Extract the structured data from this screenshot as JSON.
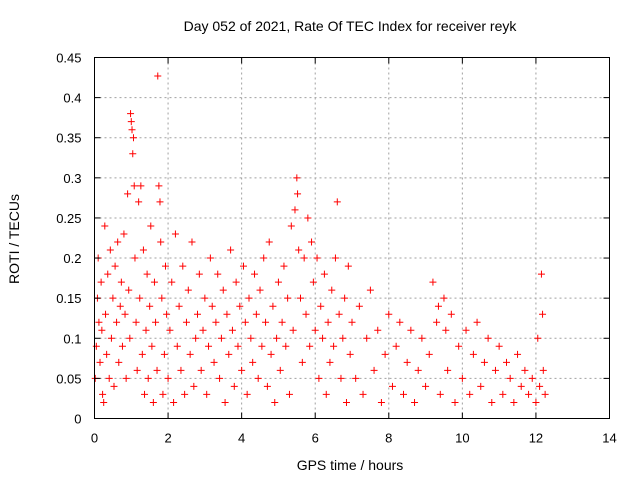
{
  "chart_data": {
    "type": "scatter",
    "title": "Day 052 of 2021, Rate Of TEC Index for receiver reyk",
    "xlabel": "GPS time / hours",
    "ylabel": "ROTI / TECUs",
    "xlim": [
      0,
      14
    ],
    "ylim": [
      0,
      0.45
    ],
    "xticks": [
      0,
      2,
      4,
      6,
      8,
      10,
      12,
      14
    ],
    "yticks": [
      0,
      0.05,
      0.1,
      0.15,
      0.2,
      0.25,
      0.3,
      0.35,
      0.4,
      0.45
    ],
    "xtick_labels": [
      "0",
      "2",
      "4",
      "6",
      "8",
      "10",
      "12",
      "14"
    ],
    "ytick_labels": [
      "0",
      "0.05",
      "0.1",
      "0.15",
      "0.2",
      "0.25",
      "0.3",
      "0.35",
      "0.4",
      "0.45"
    ],
    "grid": true,
    "marker": "+",
    "color": "#ff0000",
    "series": [
      {
        "name": "ROTI",
        "points": [
          [
            0.02,
            0.05
          ],
          [
            0.05,
            0.09
          ],
          [
            0.08,
            0.15
          ],
          [
            0.1,
            0.2
          ],
          [
            0.12,
            0.12
          ],
          [
            0.15,
            0.07
          ],
          [
            0.18,
            0.17
          ],
          [
            0.2,
            0.11
          ],
          [
            0.22,
            0.03
          ],
          [
            0.25,
            0.02
          ],
          [
            0.28,
            0.24
          ],
          [
            0.3,
            0.13
          ],
          [
            0.33,
            0.08
          ],
          [
            0.36,
            0.18
          ],
          [
            0.4,
            0.05
          ],
          [
            0.43,
            0.21
          ],
          [
            0.46,
            0.1
          ],
          [
            0.5,
            0.15
          ],
          [
            0.53,
            0.04
          ],
          [
            0.56,
            0.19
          ],
          [
            0.6,
            0.12
          ],
          [
            0.63,
            0.22
          ],
          [
            0.66,
            0.07
          ],
          [
            0.7,
            0.14
          ],
          [
            0.73,
            0.17
          ],
          [
            0.76,
            0.09
          ],
          [
            0.8,
            0.23
          ],
          [
            0.83,
            0.13
          ],
          [
            0.86,
            0.05
          ],
          [
            0.9,
            0.28
          ],
          [
            0.93,
            0.16
          ],
          [
            0.96,
            0.1
          ],
          [
            0.98,
            0.38
          ],
          [
            1.0,
            0.37
          ],
          [
            1.02,
            0.36
          ],
          [
            1.04,
            0.33
          ],
          [
            1.06,
            0.35
          ],
          [
            1.08,
            0.29
          ],
          [
            1.1,
            0.2
          ],
          [
            1.13,
            0.12
          ],
          [
            1.16,
            0.06
          ],
          [
            1.2,
            0.27
          ],
          [
            1.23,
            0.15
          ],
          [
            1.26,
            0.29
          ],
          [
            1.3,
            0.08
          ],
          [
            1.33,
            0.21
          ],
          [
            1.36,
            0.03
          ],
          [
            1.4,
            0.11
          ],
          [
            1.43,
            0.18
          ],
          [
            1.46,
            0.05
          ],
          [
            1.5,
            0.14
          ],
          [
            1.53,
            0.24
          ],
          [
            1.56,
            0.09
          ],
          [
            1.6,
            0.02
          ],
          [
            1.63,
            0.17
          ],
          [
            1.66,
            0.12
          ],
          [
            1.7,
            0.06
          ],
          [
            1.72,
            0.427
          ],
          [
            1.75,
            0.29
          ],
          [
            1.78,
            0.27
          ],
          [
            1.8,
            0.22
          ],
          [
            1.83,
            0.15
          ],
          [
            1.86,
            0.03
          ],
          [
            1.9,
            0.08
          ],
          [
            1.93,
            0.19
          ],
          [
            1.96,
            0.13
          ],
          [
            2.0,
            0.05
          ],
          [
            2.05,
            0.11
          ],
          [
            2.1,
            0.17
          ],
          [
            2.15,
            0.02
          ],
          [
            2.2,
            0.23
          ],
          [
            2.25,
            0.09
          ],
          [
            2.3,
            0.14
          ],
          [
            2.35,
            0.06
          ],
          [
            2.4,
            0.19
          ],
          [
            2.45,
            0.03
          ],
          [
            2.5,
            0.12
          ],
          [
            2.55,
            0.16
          ],
          [
            2.6,
            0.08
          ],
          [
            2.65,
            0.22
          ],
          [
            2.7,
            0.04
          ],
          [
            2.75,
            0.1
          ],
          [
            2.8,
            0.13
          ],
          [
            2.85,
            0.18
          ],
          [
            2.9,
            0.06
          ],
          [
            2.95,
            0.11
          ],
          [
            3.0,
            0.15
          ],
          [
            3.05,
            0.03
          ],
          [
            3.1,
            0.09
          ],
          [
            3.15,
            0.2
          ],
          [
            3.2,
            0.14
          ],
          [
            3.25,
            0.07
          ],
          [
            3.3,
            0.12
          ],
          [
            3.35,
            0.18
          ],
          [
            3.4,
            0.05
          ],
          [
            3.45,
            0.1
          ],
          [
            3.5,
            0.16
          ],
          [
            3.55,
            0.02
          ],
          [
            3.6,
            0.13
          ],
          [
            3.65,
            0.08
          ],
          [
            3.7,
            0.21
          ],
          [
            3.75,
            0.11
          ],
          [
            3.8,
            0.04
          ],
          [
            3.85,
            0.17
          ],
          [
            3.9,
            0.09
          ],
          [
            3.95,
            0.14
          ],
          [
            4.0,
            0.06
          ],
          [
            4.05,
            0.19
          ],
          [
            4.1,
            0.12
          ],
          [
            4.15,
            0.03
          ],
          [
            4.2,
            0.15
          ],
          [
            4.25,
            0.1
          ],
          [
            4.3,
            0.07
          ],
          [
            4.35,
            0.18
          ],
          [
            4.4,
            0.13
          ],
          [
            4.45,
            0.05
          ],
          [
            4.5,
            0.16
          ],
          [
            4.55,
            0.09
          ],
          [
            4.6,
            0.2
          ],
          [
            4.65,
            0.12
          ],
          [
            4.7,
            0.04
          ],
          [
            4.75,
            0.22
          ],
          [
            4.8,
            0.08
          ],
          [
            4.85,
            0.14
          ],
          [
            4.9,
            0.02
          ],
          [
            4.95,
            0.1
          ],
          [
            5.0,
            0.17
          ],
          [
            5.05,
            0.06
          ],
          [
            5.1,
            0.12
          ],
          [
            5.15,
            0.19
          ],
          [
            5.2,
            0.09
          ],
          [
            5.25,
            0.15
          ],
          [
            5.3,
            0.03
          ],
          [
            5.35,
            0.24
          ],
          [
            5.4,
            0.11
          ],
          [
            5.45,
            0.26
          ],
          [
            5.5,
            0.3
          ],
          [
            5.52,
            0.28
          ],
          [
            5.55,
            0.21
          ],
          [
            5.6,
            0.15
          ],
          [
            5.65,
            0.07
          ],
          [
            5.7,
            0.2
          ],
          [
            5.75,
            0.13
          ],
          [
            5.8,
            0.25
          ],
          [
            5.85,
            0.09
          ],
          [
            5.9,
            0.22
          ],
          [
            5.95,
            0.17
          ],
          [
            6.0,
            0.11
          ],
          [
            6.05,
            0.2
          ],
          [
            6.1,
            0.05
          ],
          [
            6.15,
            0.14
          ],
          [
            6.2,
            0.1
          ],
          [
            6.25,
            0.18
          ],
          [
            6.3,
            0.03
          ],
          [
            6.35,
            0.12
          ],
          [
            6.4,
            0.07
          ],
          [
            6.45,
            0.16
          ],
          [
            6.5,
            0.09
          ],
          [
            6.55,
            0.2
          ],
          [
            6.6,
            0.27
          ],
          [
            6.65,
            0.13
          ],
          [
            6.7,
            0.05
          ],
          [
            6.75,
            0.1
          ],
          [
            6.8,
            0.15
          ],
          [
            6.85,
            0.02
          ],
          [
            6.9,
            0.19
          ],
          [
            6.95,
            0.08
          ],
          [
            7.0,
            0.12
          ],
          [
            7.1,
            0.05
          ],
          [
            7.2,
            0.14
          ],
          [
            7.3,
            0.03
          ],
          [
            7.4,
            0.1
          ],
          [
            7.5,
            0.16
          ],
          [
            7.6,
            0.06
          ],
          [
            7.7,
            0.11
          ],
          [
            7.8,
            0.02
          ],
          [
            7.9,
            0.08
          ],
          [
            8.0,
            0.13
          ],
          [
            8.1,
            0.04
          ],
          [
            8.2,
            0.09
          ],
          [
            8.3,
            0.12
          ],
          [
            8.4,
            0.03
          ],
          [
            8.5,
            0.07
          ],
          [
            8.6,
            0.11
          ],
          [
            8.7,
            0.02
          ],
          [
            8.8,
            0.06
          ],
          [
            8.9,
            0.1
          ],
          [
            9.0,
            0.04
          ],
          [
            9.1,
            0.08
          ],
          [
            9.2,
            0.17
          ],
          [
            9.3,
            0.12
          ],
          [
            9.35,
            0.14
          ],
          [
            9.4,
            0.03
          ],
          [
            9.5,
            0.15
          ],
          [
            9.55,
            0.11
          ],
          [
            9.6,
            0.06
          ],
          [
            9.7,
            0.13
          ],
          [
            9.8,
            0.02
          ],
          [
            9.9,
            0.09
          ],
          [
            10.0,
            0.05
          ],
          [
            10.1,
            0.11
          ],
          [
            10.2,
            0.03
          ],
          [
            10.3,
            0.08
          ],
          [
            10.4,
            0.12
          ],
          [
            10.5,
            0.04
          ],
          [
            10.6,
            0.07
          ],
          [
            10.7,
            0.1
          ],
          [
            10.8,
            0.02
          ],
          [
            10.9,
            0.06
          ],
          [
            11.0,
            0.09
          ],
          [
            11.1,
            0.03
          ],
          [
            11.2,
            0.07
          ],
          [
            11.3,
            0.05
          ],
          [
            11.4,
            0.02
          ],
          [
            11.5,
            0.08
          ],
          [
            11.6,
            0.04
          ],
          [
            11.7,
            0.06
          ],
          [
            11.8,
            0.03
          ],
          [
            11.9,
            0.05
          ],
          [
            12.0,
            0.02
          ],
          [
            12.05,
            0.1
          ],
          [
            12.1,
            0.04
          ],
          [
            12.15,
            0.18
          ],
          [
            12.18,
            0.13
          ],
          [
            12.2,
            0.06
          ],
          [
            12.25,
            0.03
          ]
        ]
      }
    ]
  }
}
